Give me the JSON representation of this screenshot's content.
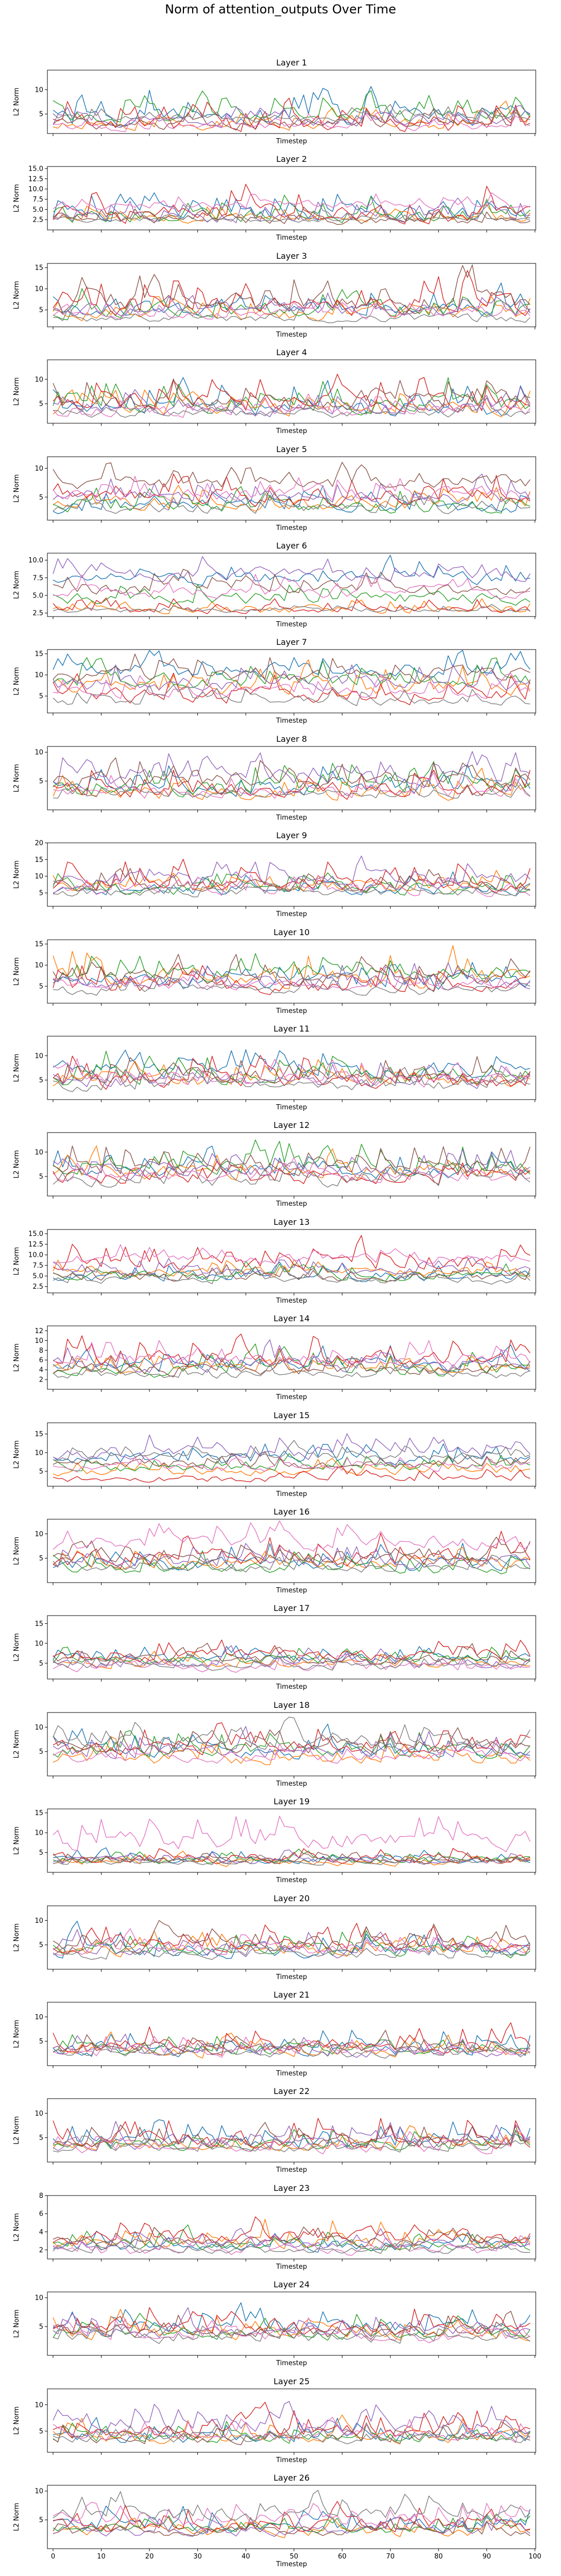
{
  "figure": {
    "title": "Norm of attention_outputs Over Time"
  },
  "palette": [
    "#1f77b4",
    "#ff7f0e",
    "#2ca02c",
    "#d62728",
    "#9467bd",
    "#8c564b",
    "#e377c2",
    "#7f7f7f"
  ],
  "chart_data": [
    {
      "type": "line",
      "title": "Layer 1",
      "xlabel": "Timestep",
      "ylabel": "L2 Norm",
      "xlim": [
        0,
        99
      ],
      "ylim": [
        1,
        14
      ],
      "yticks": [
        5,
        10
      ],
      "xtick_labels_shown": false,
      "grid": false,
      "legend": "none",
      "base": [
        4.5,
        3,
        5,
        3,
        3.5,
        3,
        2.5,
        4
      ],
      "amp": [
        3.5,
        2,
        2.5,
        3,
        2,
        2,
        1.5,
        1.5
      ]
    },
    {
      "type": "line",
      "title": "Layer 2",
      "xlabel": "Timestep",
      "ylabel": "L2 Norm",
      "xlim": [
        0,
        99
      ],
      "ylim": [
        0,
        15.5
      ],
      "yticks": [
        2.5,
        5.0,
        7.5,
        10.0,
        12.5,
        15.0
      ],
      "xtick_labels_shown": false,
      "grid": false,
      "legend": "none",
      "base": [
        4,
        3,
        3.5,
        4,
        3,
        2.5,
        6,
        2.5
      ],
      "amp": [
        3,
        2,
        3,
        4,
        2.5,
        2,
        2,
        1
      ]
    },
    {
      "type": "line",
      "title": "Layer 3",
      "xlabel": "Timestep",
      "ylabel": "L2 Norm",
      "xlim": [
        0,
        99
      ],
      "ylim": [
        1,
        16
      ],
      "yticks": [
        5,
        10,
        15
      ],
      "xtick_labels_shown": false,
      "grid": false,
      "legend": "none",
      "base": [
        5,
        4,
        5,
        6,
        5,
        7,
        4,
        3
      ],
      "amp": [
        3,
        2.5,
        3,
        4,
        2.5,
        4,
        2,
        1.5
      ]
    },
    {
      "type": "line",
      "title": "Layer 4",
      "xlabel": "Timestep",
      "ylabel": "L2 Norm",
      "xlim": [
        0,
        99
      ],
      "ylim": [
        1,
        14
      ],
      "yticks": [
        5,
        10
      ],
      "xtick_labels_shown": false,
      "grid": false,
      "legend": "none",
      "base": [
        4,
        4,
        5,
        5,
        4,
        6,
        3.5,
        3
      ],
      "amp": [
        3,
        2.5,
        3,
        3,
        2.5,
        3.5,
        2,
        1.5
      ]
    },
    {
      "type": "line",
      "title": "Layer 5",
      "xlabel": "Timestep",
      "ylabel": "L2 Norm",
      "xlim": [
        0,
        99
      ],
      "ylim": [
        1,
        12
      ],
      "yticks": [
        5,
        10
      ],
      "xtick_labels_shown": false,
      "grid": false,
      "legend": "none",
      "base": [
        3.5,
        4,
        3.5,
        5,
        5,
        7.5,
        5.5,
        3
      ],
      "amp": [
        2,
        2,
        2,
        2.5,
        2,
        2,
        2,
        1.5
      ]
    },
    {
      "type": "line",
      "title": "Layer 6",
      "xlabel": "Timestep",
      "ylabel": "L2 Norm",
      "xlim": [
        0,
        99
      ],
      "ylim": [
        2,
        11
      ],
      "yticks": [
        2.5,
        5.0,
        7.5,
        10.0
      ],
      "xtick_labels_shown": false,
      "grid": false,
      "legend": "none",
      "base": [
        7.5,
        3,
        4.5,
        3,
        8,
        6,
        5.5,
        2.8
      ],
      "amp": [
        1.5,
        1,
        1.5,
        1,
        1.5,
        1.5,
        1.5,
        0.5
      ]
    },
    {
      "type": "line",
      "title": "Layer 7",
      "xlabel": "Timestep",
      "ylabel": "L2 Norm",
      "xlim": [
        0,
        99
      ],
      "ylim": [
        1,
        16
      ],
      "yticks": [
        5,
        10,
        15
      ],
      "xtick_labels_shown": false,
      "grid": false,
      "legend": "none",
      "base": [
        11,
        7,
        9,
        5,
        8,
        10,
        6,
        4
      ],
      "amp": [
        3,
        3,
        3,
        3,
        3,
        3,
        2.5,
        2
      ]
    },
    {
      "type": "line",
      "title": "Layer 8",
      "xlabel": "Timestep",
      "ylabel": "L2 Norm",
      "xlim": [
        0,
        99
      ],
      "ylim": [
        0,
        11
      ],
      "yticks": [
        5,
        10
      ],
      "xtick_labels_shown": false,
      "grid": false,
      "legend": "none",
      "base": [
        4,
        3,
        4,
        3.5,
        6,
        5,
        3,
        2.5
      ],
      "amp": [
        2.5,
        2,
        2.5,
        2.5,
        3,
        2.5,
        2,
        1
      ]
    },
    {
      "type": "line",
      "title": "Layer 9",
      "xlabel": "Timestep",
      "ylabel": "L2 Norm",
      "xlim": [
        0,
        99
      ],
      "ylim": [
        1,
        20
      ],
      "yticks": [
        5,
        10,
        15,
        20
      ],
      "xtick_labels_shown": false,
      "grid": false,
      "legend": "none",
      "base": [
        6,
        7,
        6,
        8,
        9,
        7,
        6,
        5
      ],
      "amp": [
        3,
        3,
        3,
        4,
        4,
        3,
        3,
        2
      ]
    },
    {
      "type": "line",
      "title": "Layer 10",
      "xlabel": "Timestep",
      "ylabel": "L2 Norm",
      "xlim": [
        0,
        99
      ],
      "ylim": [
        1,
        16
      ],
      "yticks": [
        5,
        10,
        15
      ],
      "xtick_labels_shown": false,
      "grid": false,
      "legend": "none",
      "base": [
        6,
        7,
        8,
        5,
        6,
        7,
        5,
        4
      ],
      "amp": [
        3,
        4,
        3,
        3,
        3,
        3,
        2,
        2
      ]
    },
    {
      "type": "line",
      "title": "Layer 11",
      "xlabel": "Timestep",
      "ylabel": "L2 Norm",
      "xlim": [
        0,
        99
      ],
      "ylim": [
        1,
        14
      ],
      "yticks": [
        5,
        10
      ],
      "xtick_labels_shown": false,
      "grid": false,
      "legend": "none",
      "base": [
        7,
        5,
        6,
        5,
        5,
        6,
        5,
        4
      ],
      "amp": [
        3,
        2.5,
        3,
        3,
        2.5,
        2.5,
        2.5,
        2
      ]
    },
    {
      "type": "line",
      "title": "Layer 12",
      "xlabel": "Timestep",
      "ylabel": "L2 Norm",
      "xlim": [
        0,
        99
      ],
      "ylim": [
        1,
        14
      ],
      "yticks": [
        5,
        10
      ],
      "xtick_labels_shown": false,
      "grid": false,
      "legend": "none",
      "base": [
        6,
        6,
        7,
        5,
        6,
        7,
        5,
        4
      ],
      "amp": [
        2.5,
        2.5,
        3,
        2.5,
        2.5,
        3,
        2,
        2
      ]
    },
    {
      "type": "line",
      "title": "Layer 13",
      "xlabel": "Timestep",
      "ylabel": "L2 Norm",
      "xlim": [
        0,
        99
      ],
      "ylim": [
        1,
        16
      ],
      "yticks": [
        2.5,
        5.0,
        7.5,
        10.0,
        12.5,
        15.0
      ],
      "xtick_labels_shown": false,
      "grid": false,
      "legend": "none",
      "base": [
        5,
        6,
        5,
        8,
        6,
        5,
        9,
        4
      ],
      "amp": [
        2,
        2,
        2,
        3,
        2,
        2,
        2,
        1.5
      ]
    },
    {
      "type": "line",
      "title": "Layer 14",
      "xlabel": "Timestep",
      "ylabel": "L2 Norm",
      "xlim": [
        0,
        99
      ],
      "ylim": [
        0,
        13
      ],
      "yticks": [
        2,
        4,
        6,
        8,
        10,
        12
      ],
      "xtick_labels_shown": false,
      "grid": false,
      "legend": "none",
      "base": [
        5,
        4,
        4,
        6,
        5,
        4,
        6,
        3
      ],
      "amp": [
        2.5,
        2,
        2.5,
        3,
        2.5,
        2,
        2.5,
        1.5
      ]
    },
    {
      "type": "line",
      "title": "Layer 15",
      "xlabel": "Timestep",
      "ylabel": "L2 Norm",
      "xlim": [
        0,
        99
      ],
      "ylim": [
        1,
        18
      ],
      "yticks": [
        5,
        10,
        15
      ],
      "xtick_labels_shown": false,
      "grid": false,
      "legend": "none",
      "base": [
        8,
        5,
        6,
        3,
        10,
        7,
        6,
        9
      ],
      "amp": [
        2.5,
        2,
        2,
        1.5,
        3,
        2,
        2,
        2
      ]
    },
    {
      "type": "line",
      "title": "Layer 16",
      "xlabel": "Timestep",
      "ylabel": "L2 Norm",
      "xlim": [
        0,
        99
      ],
      "ylim": [
        0,
        13
      ],
      "yticks": [
        5,
        10
      ],
      "xtick_labels_shown": false,
      "grid": false,
      "legend": "none",
      "base": [
        4,
        4,
        3,
        5,
        4,
        5,
        8,
        3
      ],
      "amp": [
        2.5,
        2,
        2,
        3,
        2.5,
        2,
        2.5,
        1.5
      ]
    },
    {
      "type": "line",
      "title": "Layer 17",
      "xlabel": "Timestep",
      "ylabel": "L2 Norm",
      "xlim": [
        0,
        99
      ],
      "ylim": [
        1,
        17
      ],
      "yticks": [
        5,
        10,
        15
      ],
      "xtick_labels_shown": false,
      "grid": false,
      "legend": "none",
      "base": [
        6,
        5,
        6,
        7,
        5,
        6,
        4,
        4
      ],
      "amp": [
        2,
        2,
        2,
        2.5,
        2,
        2,
        2,
        1.5
      ]
    },
    {
      "type": "line",
      "title": "Layer 18",
      "xlabel": "Timestep",
      "ylabel": "L2 Norm",
      "xlim": [
        0,
        99
      ],
      "ylim": [
        0,
        13
      ],
      "yticks": [
        5,
        10
      ],
      "xtick_labels_shown": false,
      "grid": false,
      "legend": "none",
      "base": [
        5,
        4,
        5,
        6,
        5,
        6,
        4,
        7
      ],
      "amp": [
        2.5,
        2.5,
        2.5,
        2.5,
        2.5,
        2.5,
        2,
        2.5
      ]
    },
    {
      "type": "line",
      "title": "Layer 19",
      "xlabel": "Timestep",
      "ylabel": "L2 Norm",
      "xlim": [
        0,
        99
      ],
      "ylim": [
        0,
        16
      ],
      "yticks": [
        5,
        10,
        15
      ],
      "xtick_labels_shown": false,
      "grid": false,
      "legend": "none",
      "base": [
        3,
        2.5,
        3,
        3.5,
        3,
        3,
        8,
        2.5
      ],
      "amp": [
        1.5,
        1.5,
        1.5,
        2,
        1.5,
        1.5,
        4,
        1
      ]
    },
    {
      "type": "line",
      "title": "Layer 20",
      "xlabel": "Timestep",
      "ylabel": "L2 Norm",
      "xlim": [
        0,
        99
      ],
      "ylim": [
        0,
        13
      ],
      "yticks": [
        5,
        10
      ],
      "xtick_labels_shown": false,
      "grid": false,
      "legend": "none",
      "base": [
        4,
        4,
        4,
        5,
        4,
        5,
        4,
        3
      ],
      "amp": [
        2.5,
        2,
        2.5,
        2.5,
        2.5,
        2.5,
        2,
        1.5
      ]
    },
    {
      "type": "line",
      "title": "Layer 21",
      "xlabel": "Timestep",
      "ylabel": "L2 Norm",
      "xlim": [
        0,
        99
      ],
      "ylim": [
        0,
        13
      ],
      "yticks": [
        5,
        10
      ],
      "xtick_labels_shown": false,
      "grid": false,
      "legend": "none",
      "base": [
        3.5,
        3,
        3.5,
        4,
        3,
        3.5,
        3,
        2.5
      ],
      "amp": [
        2.5,
        2,
        2,
        2.5,
        2,
        2,
        2,
        1.5
      ]
    },
    {
      "type": "line",
      "title": "Layer 22",
      "xlabel": "Timestep",
      "ylabel": "L2 Norm",
      "xlim": [
        0,
        99
      ],
      "ylim": [
        0,
        13
      ],
      "yticks": [
        5,
        10
      ],
      "xtick_labels_shown": false,
      "grid": false,
      "legend": "none",
      "base": [
        4,
        3.5,
        3.5,
        4.5,
        4,
        4,
        3,
        3
      ],
      "amp": [
        2.5,
        2,
        2,
        3,
        2.5,
        2,
        2,
        1.5
      ]
    },
    {
      "type": "line",
      "title": "Layer 23",
      "xlabel": "Timestep",
      "ylabel": "L2 Norm",
      "xlim": [
        0,
        99
      ],
      "ylim": [
        1,
        8
      ],
      "yticks": [
        2,
        4,
        6,
        8
      ],
      "xtick_labels_shown": false,
      "grid": false,
      "legend": "none",
      "base": [
        2.5,
        3,
        2.5,
        3.5,
        2.5,
        3,
        2,
        2
      ],
      "amp": [
        1,
        1.5,
        1,
        1.5,
        1,
        1,
        1,
        0.7
      ]
    },
    {
      "type": "line",
      "title": "Layer 24",
      "xlabel": "Timestep",
      "ylabel": "L2 Norm",
      "xlim": [
        0,
        99
      ],
      "ylim": [
        0,
        11
      ],
      "yticks": [
        5,
        10
      ],
      "xtick_labels_shown": false,
      "grid": false,
      "legend": "none",
      "base": [
        5,
        4,
        4,
        5,
        4,
        4,
        3.5,
        3
      ],
      "amp": [
        2,
        2,
        2,
        2.5,
        2,
        2,
        2,
        1.5
      ]
    },
    {
      "type": "line",
      "title": "Layer 25",
      "xlabel": "Timestep",
      "ylabel": "L2 Norm",
      "xlim": [
        0,
        99
      ],
      "ylim": [
        1,
        13
      ],
      "yticks": [
        5,
        10
      ],
      "xtick_labels_shown": false,
      "grid": false,
      "legend": "none",
      "base": [
        4,
        4,
        4,
        5,
        6,
        4,
        4,
        3.5
      ],
      "amp": [
        2,
        2,
        2,
        2.5,
        2.5,
        2,
        2,
        1.5
      ]
    },
    {
      "type": "line",
      "title": "Layer 26",
      "xlabel": "Timestep",
      "ylabel": "L2 Norm",
      "xlim": [
        0,
        99
      ],
      "ylim": [
        0,
        11
      ],
      "yticks": [
        5,
        10
      ],
      "xtick_labels_shown": true,
      "xticks": [
        0,
        10,
        20,
        30,
        40,
        50,
        60,
        70,
        80,
        90,
        100
      ],
      "grid": false,
      "legend": "none",
      "base": [
        4,
        3,
        3.5,
        4,
        3,
        3,
        5,
        6
      ],
      "amp": [
        2,
        1.5,
        1.5,
        2,
        1.5,
        1.5,
        2,
        2
      ]
    }
  ]
}
